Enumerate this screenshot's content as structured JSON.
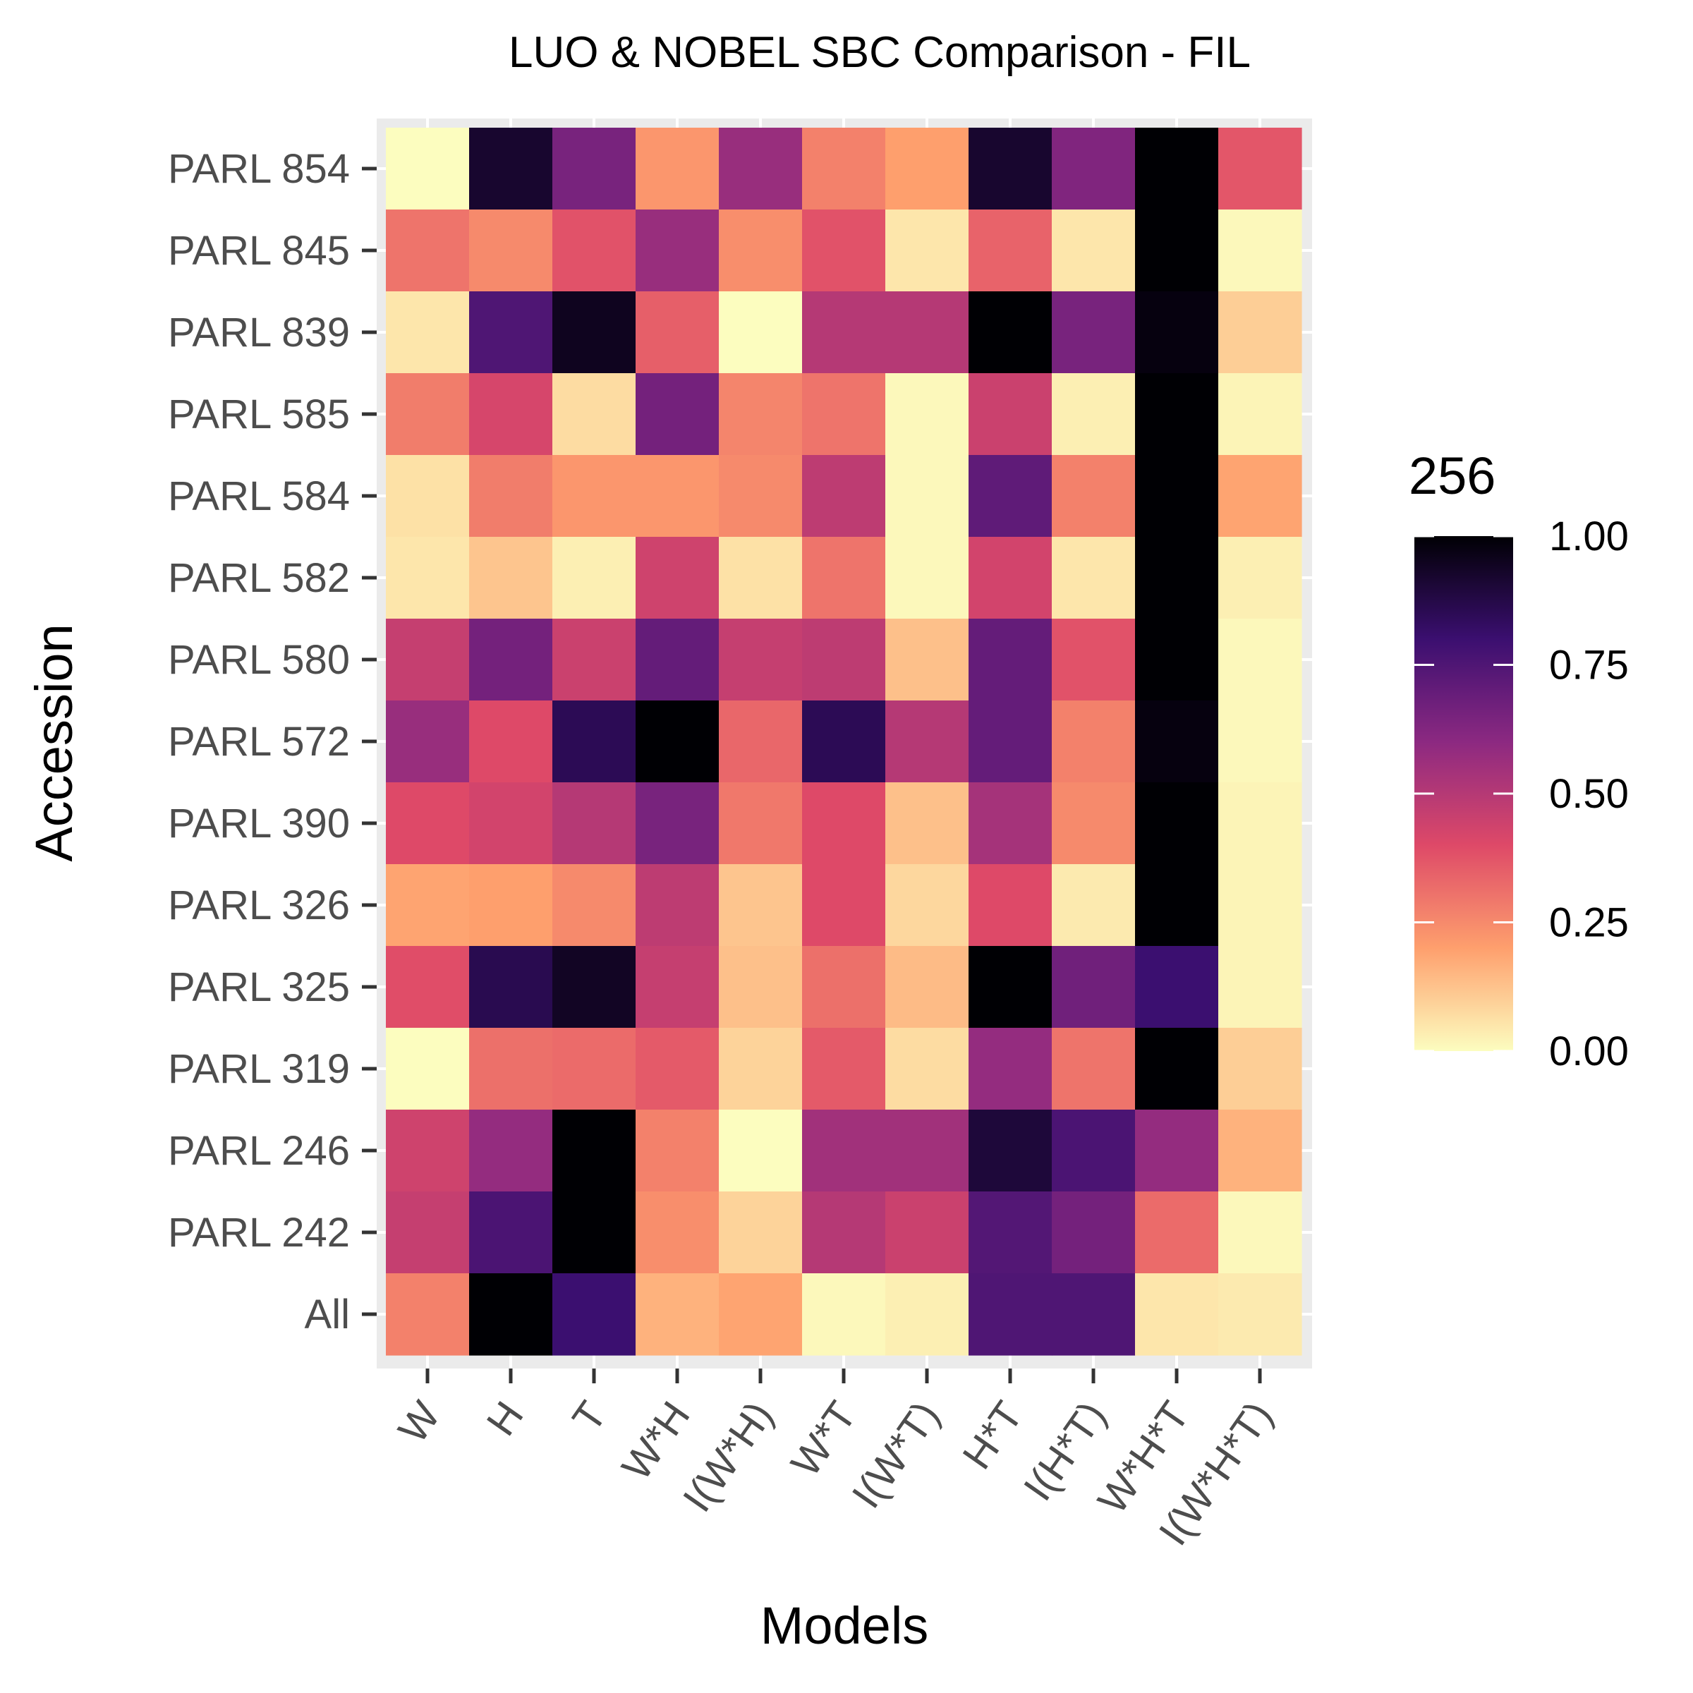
{
  "chart_data": {
    "type": "heatmap",
    "title": "LUO & NOBEL SBC Comparison - FIL",
    "xlabel": "Models",
    "ylabel": "Accession",
    "x_categories": [
      "W",
      "H",
      "T",
      "W*H",
      "I(W*H)",
      "W*T",
      "I(W*T)",
      "H*T",
      "I(H*T)",
      "W*H*T",
      "I(W*H*T)"
    ],
    "y_categories": [
      "PARL 854",
      "PARL 845",
      "PARL 839",
      "PARL 585",
      "PARL 584",
      "PARL 582",
      "PARL 580",
      "PARL 572",
      "PARL 390",
      "PARL 326",
      "PARL 325",
      "PARL 319",
      "PARL 246",
      "PARL 242",
      "All"
    ],
    "values": [
      [
        0.0,
        0.92,
        0.65,
        0.22,
        0.57,
        0.27,
        0.2,
        0.92,
        0.63,
        1.0,
        0.37
      ],
      [
        0.3,
        0.25,
        0.38,
        0.57,
        0.24,
        0.38,
        0.05,
        0.34,
        0.05,
        1.0,
        0.01
      ],
      [
        0.05,
        0.75,
        0.95,
        0.35,
        0.0,
        0.5,
        0.5,
        1.0,
        0.65,
        0.98,
        0.1
      ],
      [
        0.28,
        0.42,
        0.07,
        0.66,
        0.26,
        0.3,
        0.01,
        0.45,
        0.03,
        1.0,
        0.02
      ],
      [
        0.06,
        0.28,
        0.22,
        0.22,
        0.25,
        0.48,
        0.01,
        0.71,
        0.27,
        1.0,
        0.19
      ],
      [
        0.05,
        0.12,
        0.03,
        0.44,
        0.06,
        0.3,
        0.01,
        0.43,
        0.05,
        1.0,
        0.03
      ],
      [
        0.46,
        0.66,
        0.45,
        0.7,
        0.46,
        0.48,
        0.13,
        0.7,
        0.38,
        1.0,
        0.01
      ],
      [
        0.57,
        0.4,
        0.85,
        1.0,
        0.33,
        0.85,
        0.5,
        0.7,
        0.27,
        0.98,
        0.01
      ],
      [
        0.4,
        0.43,
        0.5,
        0.65,
        0.29,
        0.4,
        0.13,
        0.54,
        0.25,
        1.0,
        0.02
      ],
      [
        0.19,
        0.2,
        0.25,
        0.48,
        0.12,
        0.4,
        0.08,
        0.4,
        0.04,
        1.0,
        0.02
      ],
      [
        0.39,
        0.86,
        0.94,
        0.46,
        0.13,
        0.31,
        0.14,
        1.0,
        0.67,
        0.8,
        0.02
      ],
      [
        0.0,
        0.31,
        0.32,
        0.36,
        0.09,
        0.36,
        0.07,
        0.58,
        0.3,
        1.0,
        0.1
      ],
      [
        0.44,
        0.58,
        1.0,
        0.27,
        0.0,
        0.55,
        0.55,
        0.9,
        0.76,
        0.58,
        0.16
      ],
      [
        0.46,
        0.76,
        1.0,
        0.24,
        0.09,
        0.5,
        0.45,
        0.74,
        0.66,
        0.32,
        0.01
      ],
      [
        0.27,
        1.0,
        0.8,
        0.16,
        0.19,
        0.01,
        0.03,
        0.75,
        0.75,
        0.05,
        0.04
      ]
    ],
    "colorscale": "magma (reversed)",
    "scale_colors": [
      "#fcfdbf",
      "#fe9f6d",
      "#de4968",
      "#8c2981",
      "#3b0f70",
      "#000004"
    ],
    "legend": {
      "title": "256",
      "position": "right",
      "range": [
        0,
        1
      ],
      "ticks": [
        "0.00",
        "0.25",
        "0.50",
        "0.75",
        "1.00"
      ]
    },
    "panel_background": "#ebebeb",
    "grid": true
  }
}
